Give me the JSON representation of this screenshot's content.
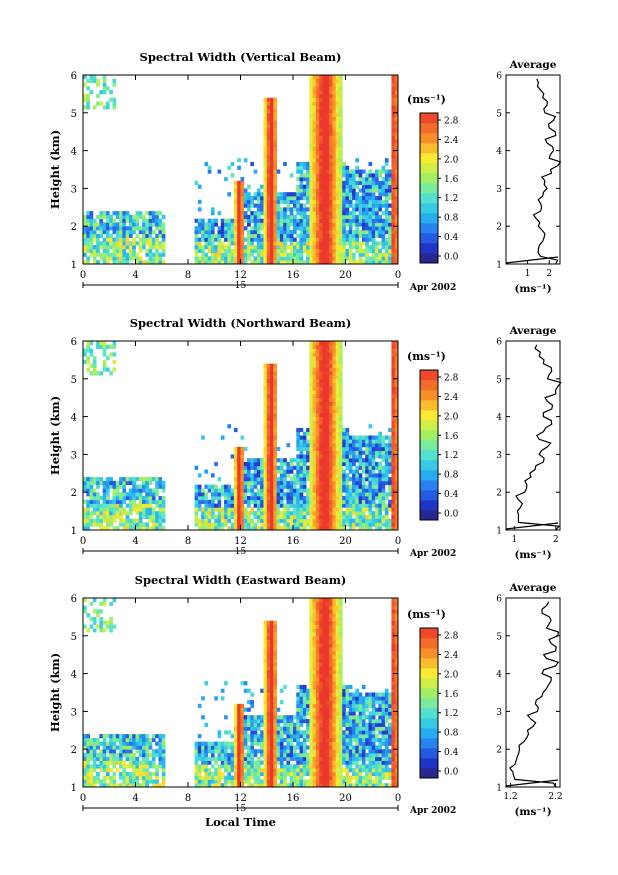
{
  "figure": {
    "xlabel_bottom": "Local Time",
    "date_label": "Apr 2002",
    "day_label": "15",
    "ylabel": "Height (km)",
    "unit_label": "(ms⁻¹)"
  },
  "chart_data": [
    {
      "type": "heatmap",
      "title": "Spectral Width (Vertical Beam)",
      "xlabel": "",
      "ylabel": "Height (km)",
      "xlim": [
        0,
        24
      ],
      "ylim": [
        1,
        6
      ],
      "x_ticks": [
        "0",
        "4",
        "8",
        "12",
        "16",
        "20",
        "0"
      ],
      "y_ticks": [
        "1",
        "2",
        "3",
        "4",
        "5",
        "6"
      ],
      "colorbar": {
        "label": "(ms⁻¹)",
        "range": [
          0.0,
          3.0
        ],
        "ticks": [
          "0.0",
          "0.4",
          "0.8",
          "1.2",
          "1.6",
          "2.0",
          "2.4",
          "2.8"
        ]
      },
      "average_profile": {
        "title": "Average",
        "xlabel": "(ms⁻¹)",
        "x_ticks": [
          "1",
          "2"
        ],
        "xlim": [
          0,
          2.5
        ],
        "heights": [
          1.0,
          1.2,
          1.4,
          1.6,
          1.8,
          2.0,
          2.2,
          2.4,
          2.6,
          2.8,
          3.0,
          3.2,
          3.4,
          3.6,
          3.8,
          4.0,
          4.2,
          4.4,
          4.6,
          4.8,
          5.0,
          5.2,
          5.4,
          5.6,
          5.8
        ],
        "values": [
          2.3,
          1.6,
          1.5,
          1.7,
          1.8,
          1.5,
          1.4,
          1.6,
          1.6,
          1.7,
          1.9,
          1.8,
          2.1,
          2.4,
          2.0,
          2.2,
          1.9,
          2.3,
          2.0,
          2.2,
          1.8,
          1.9,
          1.7,
          1.6,
          1.5
        ]
      }
    },
    {
      "type": "heatmap",
      "title": "Spectral Width (Northward Beam)",
      "xlabel": "",
      "ylabel": "Height (km)",
      "xlim": [
        0,
        24
      ],
      "ylim": [
        1,
        6
      ],
      "x_ticks": [
        "0",
        "4",
        "8",
        "12",
        "16",
        "20",
        "0"
      ],
      "y_ticks": [
        "1",
        "2",
        "3",
        "4",
        "5",
        "6"
      ],
      "colorbar": {
        "label": "(ms⁻¹)",
        "range": [
          0.0,
          3.0
        ],
        "ticks": [
          "0.0",
          "0.4",
          "0.8",
          "1.2",
          "1.6",
          "2.0",
          "2.4",
          "2.8"
        ]
      },
      "average_profile": {
        "title": "Average",
        "xlabel": "(ms⁻¹)",
        "x_ticks": [
          "1",
          "2"
        ],
        "xlim": [
          0.8,
          2.1
        ],
        "heights": [
          1.0,
          1.2,
          1.4,
          1.6,
          1.8,
          2.0,
          2.2,
          2.4,
          2.6,
          2.8,
          3.0,
          3.2,
          3.4,
          3.6,
          3.8,
          4.0,
          4.2,
          4.4,
          4.6,
          4.8,
          5.0,
          5.2,
          5.4,
          5.6,
          5.8
        ],
        "values": [
          2.0,
          1.1,
          1.1,
          1.15,
          1.1,
          1.25,
          1.3,
          1.4,
          1.5,
          1.7,
          1.6,
          1.8,
          1.6,
          1.7,
          1.9,
          1.7,
          1.9,
          1.8,
          2.0,
          2.05,
          1.8,
          1.9,
          1.7,
          1.6,
          1.5
        ]
      }
    },
    {
      "type": "heatmap",
      "title": "Spectral Width (Eastward Beam)",
      "xlabel": "Local Time",
      "ylabel": "Height (km)",
      "xlim": [
        0,
        24
      ],
      "ylim": [
        1,
        6
      ],
      "x_ticks": [
        "0",
        "4",
        "8",
        "12",
        "16",
        "20",
        "0"
      ],
      "y_ticks": [
        "1",
        "2",
        "3",
        "4",
        "5",
        "6"
      ],
      "colorbar": {
        "label": "(ms⁻¹)",
        "range": [
          0.0,
          3.0
        ],
        "ticks": [
          "0.0",
          "0.4",
          "0.8",
          "1.2",
          "1.6",
          "2.0",
          "2.4",
          "2.8"
        ]
      },
      "average_profile": {
        "title": "Average",
        "xlabel": "(ms⁻¹)",
        "x_ticks": [
          "1.2",
          "2.2"
        ],
        "xlim": [
          1.1,
          2.3
        ],
        "heights": [
          1.0,
          1.2,
          1.4,
          1.6,
          1.8,
          2.0,
          2.2,
          2.4,
          2.6,
          2.8,
          3.0,
          3.2,
          3.4,
          3.6,
          3.8,
          4.0,
          4.2,
          4.4,
          4.6,
          4.8,
          5.0,
          5.2,
          5.4,
          5.6,
          5.8
        ],
        "values": [
          2.2,
          1.3,
          1.25,
          1.3,
          1.35,
          1.4,
          1.5,
          1.6,
          1.7,
          1.65,
          1.8,
          1.75,
          1.9,
          2.0,
          2.1,
          1.9,
          2.2,
          2.0,
          2.2,
          2.1,
          2.25,
          2.0,
          2.1,
          1.9,
          2.0
        ]
      }
    }
  ]
}
